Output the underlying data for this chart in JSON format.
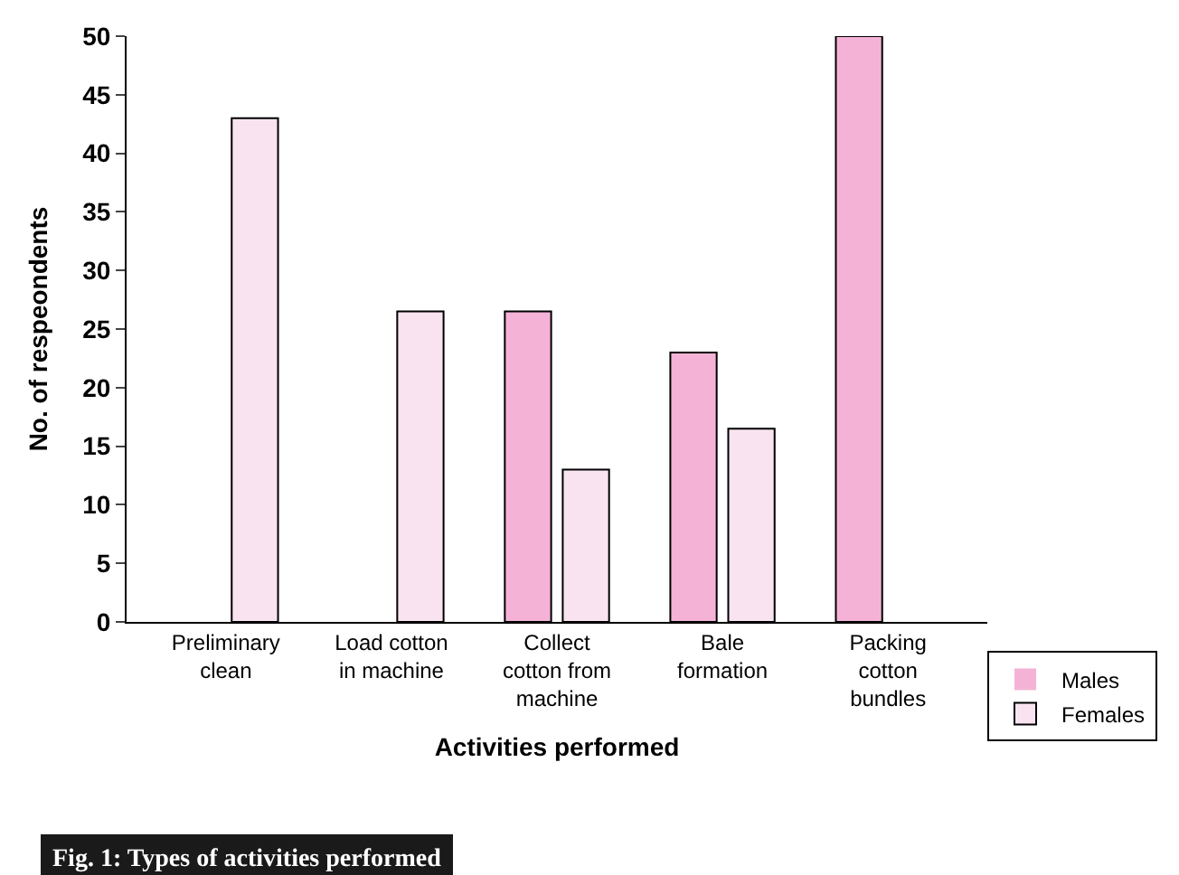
{
  "chart_data": {
    "type": "bar",
    "xlabel": "Activities performed",
    "ylabel": "No. of respeondents",
    "categories": [
      "Preliminary clean",
      "Load cotton in machine",
      "Collect cotton from machine",
      "Bale formation",
      "Packing cotton bundles"
    ],
    "series": [
      {
        "name": "Males",
        "color": "#f4b3d6",
        "values": [
          0,
          0,
          26.5,
          23,
          50
        ]
      },
      {
        "name": "Females",
        "color": "#f9e3f1",
        "values": [
          43,
          26.5,
          13,
          16.5,
          0
        ]
      }
    ],
    "ylim": [
      0,
      50
    ],
    "yticks": [
      0,
      5,
      10,
      15,
      20,
      25,
      30,
      35,
      40,
      45,
      50
    ],
    "legend": "bottom right",
    "annotations": [
      "Fig. 1: Types of activities performed"
    ]
  }
}
